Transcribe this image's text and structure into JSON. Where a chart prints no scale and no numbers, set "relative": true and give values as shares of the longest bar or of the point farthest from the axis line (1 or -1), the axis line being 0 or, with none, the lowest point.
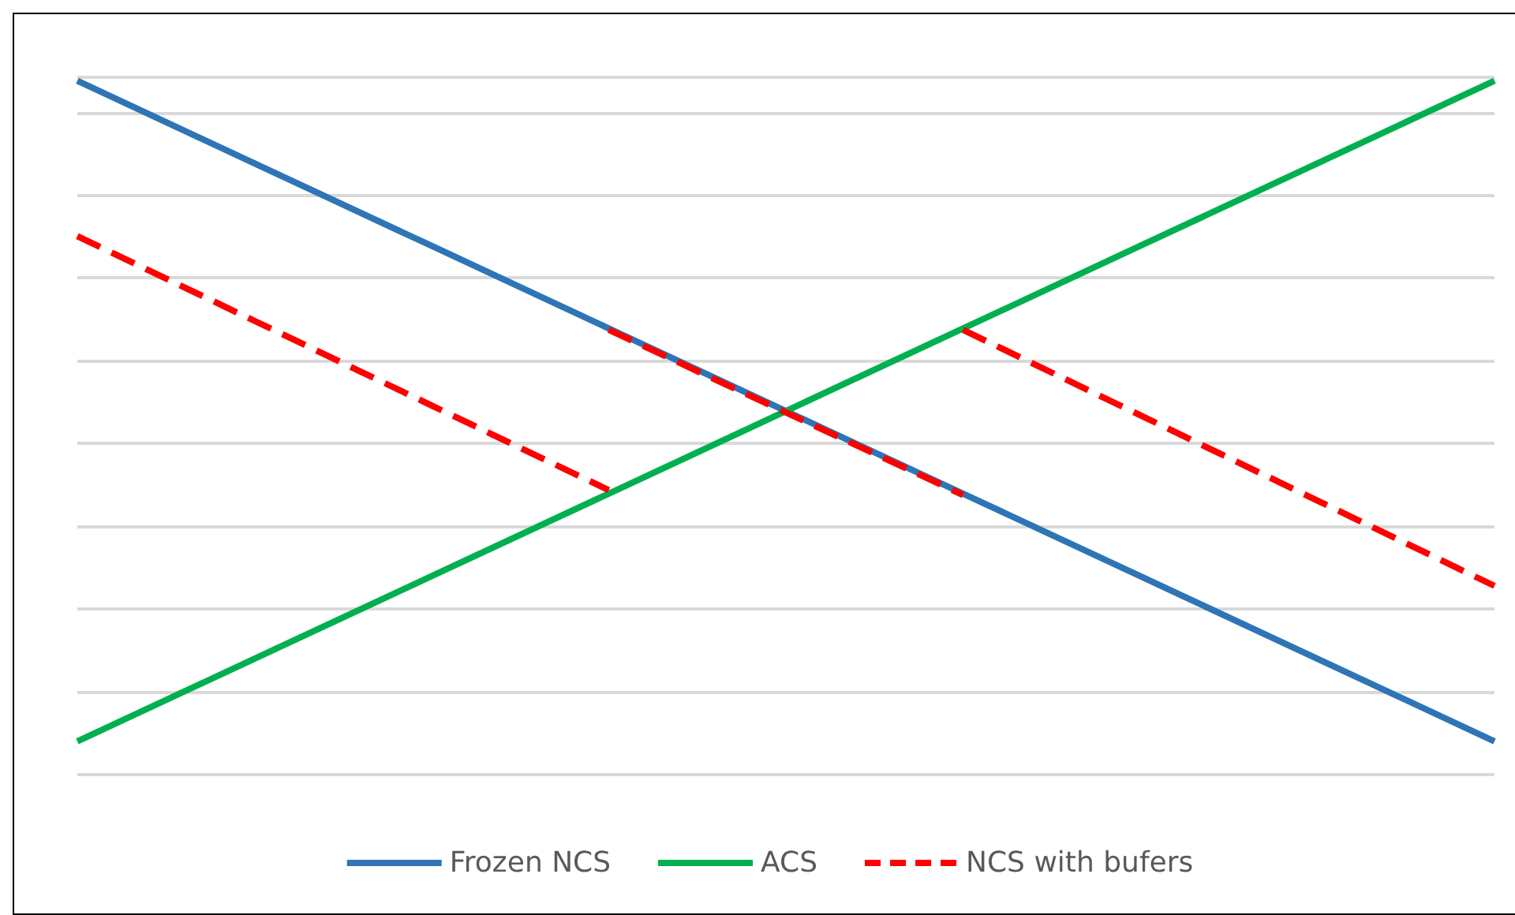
{
  "chart_data": {
    "type": "line",
    "relative": true,
    "categories": [
      null,
      null,
      null,
      null,
      null,
      null,
      null,
      null,
      null
    ],
    "grid": "y",
    "legend": "bottom",
    "marker": "none",
    "series": [
      {
        "name": "Frozen NCS",
        "color": "#2e75b6",
        "values": [
          1,
          0.881,
          0.762,
          0.643,
          0.524,
          0.405,
          0.286,
          0.167,
          0.048
        ]
      },
      {
        "name": "ACS",
        "color": "#00b050",
        "values": [
          0.048,
          0.167,
          0.286,
          0.405,
          0.524,
          0.643,
          0.762,
          0.881,
          1
        ]
      },
      {
        "name": "NCS with bufers",
        "color": "#ff0000",
        "line_style": "dashed",
        "values": [
          0.776,
          0.654,
          0.532,
          0.41,
          null,
          null,
          null,
          null,
          null
        ]
      },
      {
        "color": "#ff0000",
        "line_style": "dashed",
        "values": [
          null,
          null,
          null,
          0.641,
          0.522,
          0.403,
          null,
          null,
          null
        ]
      },
      {
        "color": "#ff0000",
        "line_style": "dashed",
        "values": [
          null,
          null,
          null,
          null,
          null,
          0.641,
          0.518,
          0.395,
          0.272
        ]
      }
    ]
  }
}
